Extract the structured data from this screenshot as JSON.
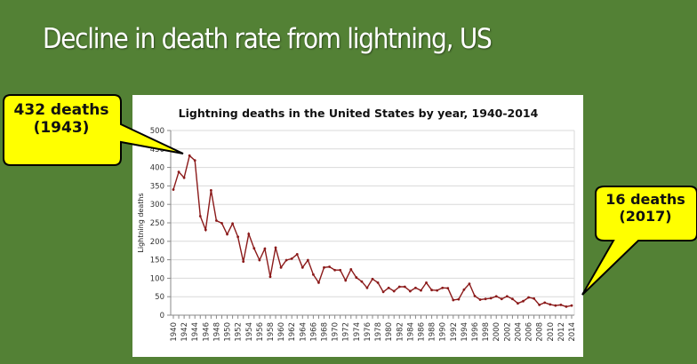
{
  "slide": {
    "title": "Decline in death rate from lightning, US",
    "background_color": "#538135"
  },
  "callouts": [
    {
      "line1": "432 deaths",
      "line2": "(1943)",
      "fill": "#ffff00"
    },
    {
      "line1": "16 deaths",
      "line2": "(2017)",
      "fill": "#ffff00"
    }
  ],
  "chart_data": {
    "type": "line",
    "title": "Lightning deaths in the United States by year, 1940-2014",
    "xlabel": "",
    "ylabel": "Lightning deaths",
    "ylim": [
      0,
      500
    ],
    "yticks": [
      0,
      50,
      100,
      150,
      200,
      250,
      300,
      350,
      400,
      450,
      500
    ],
    "xlim": [
      1940,
      2014
    ],
    "xtick_labels": [
      "1940",
      "1942",
      "1944",
      "1946",
      "1948",
      "1950",
      "1952",
      "1954",
      "1956",
      "1958",
      "1960",
      "1962",
      "1964",
      "1966",
      "1968",
      "1970",
      "1972",
      "1974",
      "1976",
      "1978",
      "1980",
      "1982",
      "1984",
      "1986",
      "1988",
      "1990",
      "1992",
      "1994",
      "1996",
      "1998",
      "2000",
      "2002",
      "2004",
      "2006",
      "2008",
      "2010",
      "2012",
      "2014"
    ],
    "grid": true,
    "line_color": "#8b1a1a",
    "series": [
      {
        "name": "Lightning deaths",
        "x": [
          1940,
          1941,
          1942,
          1943,
          1944,
          1945,
          1946,
          1947,
          1948,
          1949,
          1950,
          1951,
          1952,
          1953,
          1954,
          1955,
          1956,
          1957,
          1958,
          1959,
          1960,
          1961,
          1962,
          1963,
          1964,
          1965,
          1966,
          1967,
          1968,
          1969,
          1970,
          1971,
          1972,
          1973,
          1974,
          1975,
          1976,
          1977,
          1978,
          1979,
          1980,
          1981,
          1982,
          1983,
          1984,
          1985,
          1986,
          1987,
          1988,
          1989,
          1990,
          1991,
          1992,
          1993,
          1994,
          1995,
          1996,
          1997,
          1998,
          1999,
          2000,
          2001,
          2002,
          2003,
          2004,
          2005,
          2006,
          2007,
          2008,
          2009,
          2010,
          2011,
          2012,
          2013,
          2014
        ],
        "values": [
          340,
          388,
          372,
          432,
          419,
          268,
          231,
          338,
          256,
          249,
          219,
          248,
          212,
          145,
          220,
          181,
          149,
          180,
          104,
          183,
          129,
          149,
          153,
          165,
          129,
          149,
          110,
          88,
          129,
          131,
          122,
          122,
          94,
          124,
          102,
          91,
          74,
          98,
          88,
          63,
          74,
          65,
          77,
          77,
          65,
          74,
          67,
          88,
          68,
          67,
          74,
          73,
          41,
          43,
          69,
          85,
          52,
          42,
          44,
          46,
          51,
          44,
          51,
          44,
          32,
          38,
          48,
          45,
          28,
          34,
          29,
          26,
          28,
          23,
          26
        ]
      }
    ]
  }
}
